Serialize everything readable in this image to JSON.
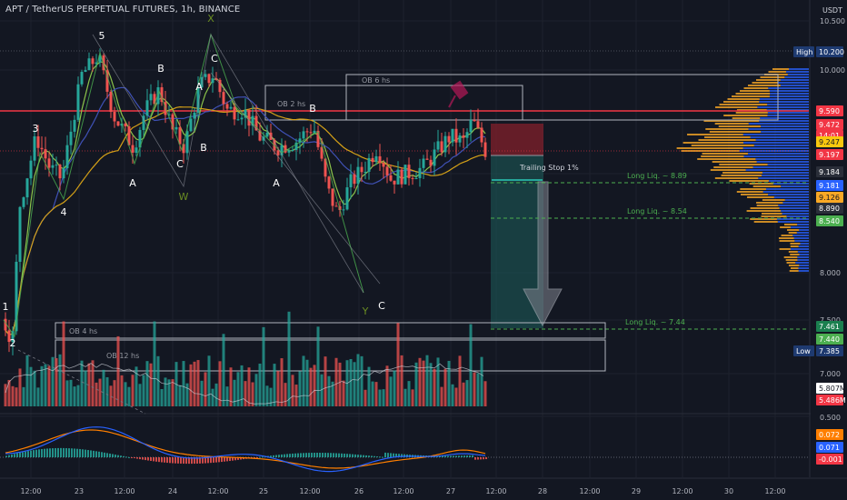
{
  "header": {
    "title": "APT / TetherUS PERPETUAL FUTURES, 1h, BINANCE",
    "currency": "USDT"
  },
  "colors": {
    "background": "#131722",
    "up": "#26a69a",
    "down": "#ef5350",
    "ma_fast": "#8bc34a",
    "ma_mid": "#3f51b5",
    "ma_slow": "#d4a017",
    "red_line": "#f23645",
    "profile_up": "#2962ff",
    "profile_down": "#f9a825",
    "wave_line": "#4caf50",
    "target_zone": "#1e5f5b",
    "stop_zone": "#7b1f2b"
  },
  "price_axis": {
    "ticks": [
      "10.500",
      "10.000",
      "9.000",
      "8.000",
      "7.500",
      "7.000"
    ],
    "badges": [
      {
        "text": "High",
        "value": "10.200",
        "color": "#1e3a70"
      },
      {
        "text": "",
        "value": "9.590",
        "color": "#f23645"
      },
      {
        "text": "",
        "value": "9.472",
        "color": "#f23645"
      },
      {
        "text": "",
        "value": "14:01",
        "color": "#f23645"
      },
      {
        "text": "",
        "value": "9.247",
        "color": "#f9c80e"
      },
      {
        "text": "",
        "value": "9.197",
        "color": "#f23645"
      },
      {
        "text": "",
        "value": "9.184",
        "color": "#2a2e39"
      },
      {
        "text": "",
        "value": "9.181",
        "color": "#2962ff"
      },
      {
        "text": "",
        "value": "9.126",
        "color": "#f9a825"
      },
      {
        "text": "",
        "value": "8.890",
        "color": "#2a2e39"
      },
      {
        "text": "",
        "value": "8.540",
        "color": "#4caf50"
      },
      {
        "text": "",
        "value": "7.461",
        "color": "#1b7f4f"
      },
      {
        "text": "",
        "value": "7.440",
        "color": "#4caf50"
      },
      {
        "text": "Low",
        "value": "7.385",
        "color": "#1e3a70"
      },
      {
        "text": "",
        "value": "5.807M",
        "color": "#ffffff"
      },
      {
        "text": "",
        "value": "5.486M",
        "color": "#f23645"
      },
      {
        "text": "",
        "value": "0.500",
        "color": ""
      },
      {
        "text": "",
        "value": "0.072",
        "color": "#ff7f00"
      },
      {
        "text": "",
        "value": "0.071",
        "color": "#2962ff"
      },
      {
        "text": "",
        "value": "-0.001",
        "color": "#f23645"
      }
    ]
  },
  "time_axis": [
    "12:00",
    "23",
    "12:00",
    "24",
    "12:00",
    "25",
    "12:00",
    "26",
    "12:00",
    "27",
    "12:00",
    "28",
    "12:00",
    "29",
    "12:00",
    "30",
    "12:00"
  ],
  "annotations": {
    "waves": [
      "1",
      "2",
      "3",
      "4",
      "5",
      "A",
      "B",
      "C",
      "W",
      "X",
      "A",
      "B",
      "C",
      "Y",
      "A",
      "B",
      "C"
    ],
    "order_blocks": [
      "OB 6 hs",
      "OB 2 hs",
      "OB 4 hs",
      "OB 12 hs"
    ],
    "trailing_stop": "Trailing Stop 1%",
    "liquidations": [
      "Long Liq. ~ 8.89",
      "Long Liq. ~ 8.54",
      "Long Liq. ~ 7.44"
    ]
  },
  "chart_data": [
    {
      "type": "candlestick",
      "series_name": "APT / TetherUS PERPETUAL FUTURES",
      "y_unit": "USDT",
      "ylim": [
        6.8,
        10.6
      ],
      "x_range": [
        "22 Mar",
        "30 Mar 12:00"
      ],
      "key_levels": {
        "high": 10.2,
        "low": 7.385,
        "last": 9.197,
        "resistance_red_line": 9.59,
        "order_block_high": 9.472,
        "trailing_stop": 9.247,
        "long_liq_1": 8.89,
        "long_liq_2": 8.54,
        "long_liq_3": 7.44
      }
    },
    {
      "type": "bar",
      "series_name": "Volume",
      "latest_values": [
        "5.807M",
        "5.486M"
      ]
    },
    {
      "type": "line",
      "series_name": "MACD",
      "ylim": [
        -0.2,
        0.55
      ],
      "latest_values": {
        "signal": 0.072,
        "macd": 0.071,
        "histogram": -0.001
      }
    }
  ]
}
